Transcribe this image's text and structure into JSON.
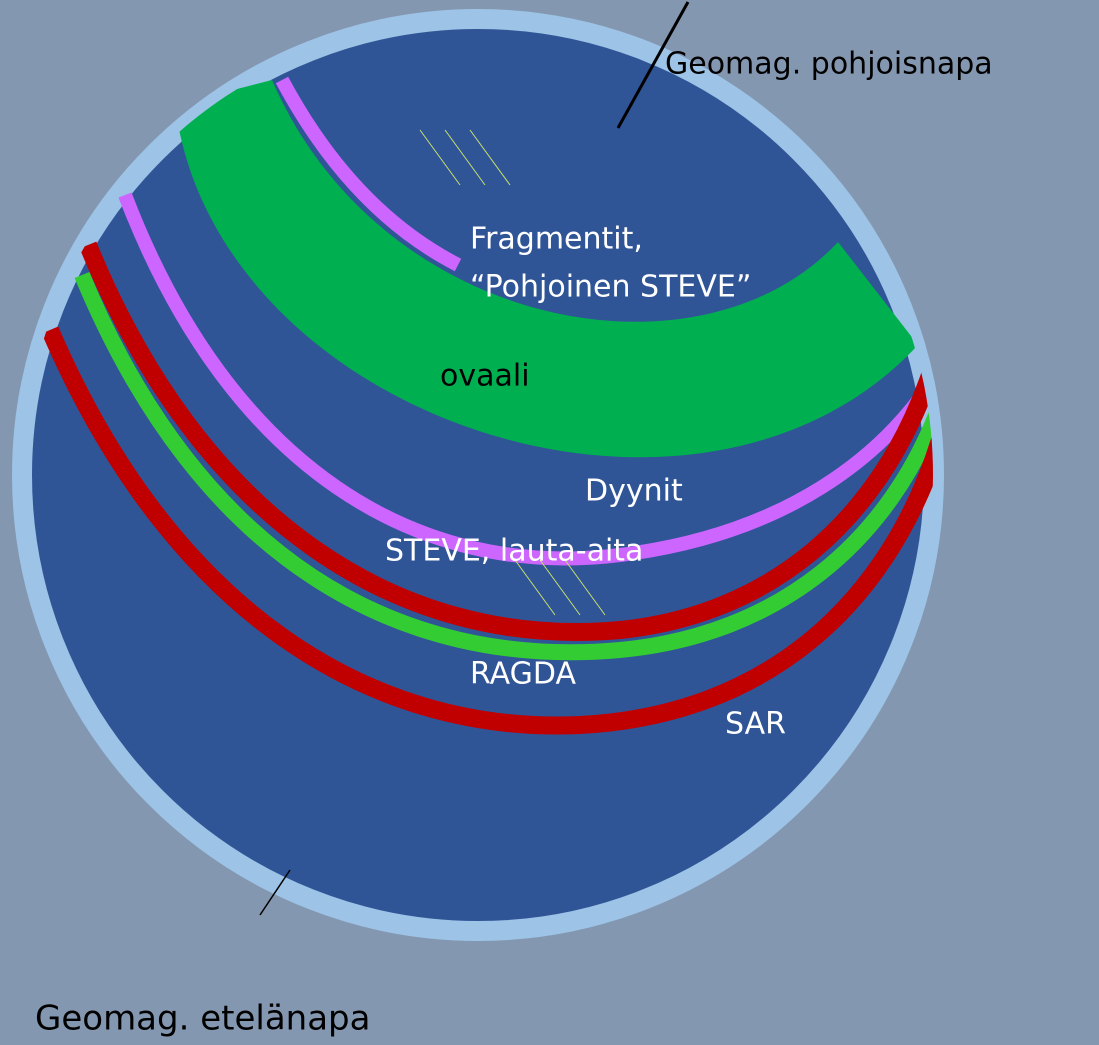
{
  "labels": {
    "north_pole": "Geomag. pohjoisnapa",
    "fragments": "Fragmentit,",
    "northern_steve": "“Pohjoinen STEVE”",
    "oval": "ovaali",
    "dunes": "Dyynit",
    "steve": "STEVE, lauta-aita",
    "ragda": "RAGDA",
    "sar": "SAR",
    "south_pole": "Geomag. etelänapa"
  }
}
